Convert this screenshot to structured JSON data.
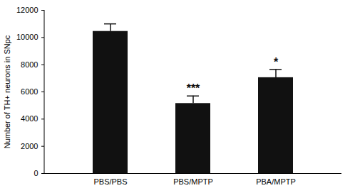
{
  "chart_data": {
    "type": "bar",
    "categories": [
      "PBS/PBS",
      "PBS/MPTP",
      "PBA/MPTP"
    ],
    "values": [
      10450,
      5150,
      7050
    ],
    "errors": [
      550,
      550,
      600
    ],
    "color": "#111111",
    "ylabel": "Number of TH+ neurons in SNpc",
    "ylim": [
      0,
      12000
    ],
    "yticks": [
      0,
      2000,
      4000,
      6000,
      8000,
      10000,
      12000
    ],
    "grid": false,
    "annotations": [
      {
        "category": "PBS/MPTP",
        "text": "***"
      },
      {
        "category": "PBA/MPTP",
        "text": "*"
      }
    ]
  }
}
